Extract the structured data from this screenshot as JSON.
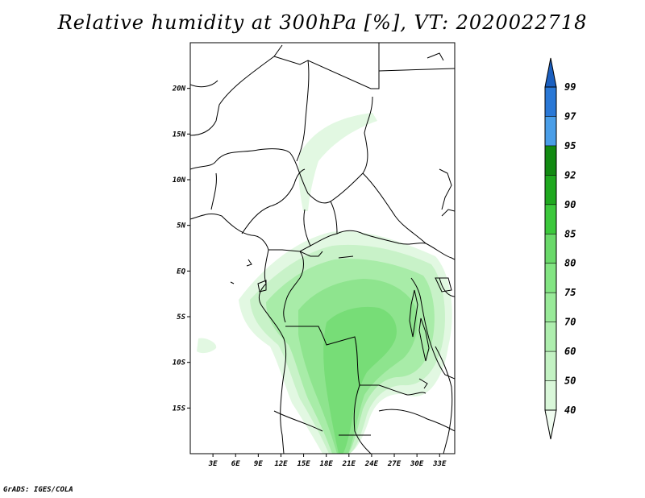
{
  "title": "Relative humidity at 300hPa [%], VT: 2020022718",
  "credit": "GrADS: IGES/COLA",
  "map": {
    "lon_range": [
      0,
      35
    ],
    "lat_range": [
      -20,
      25
    ],
    "lat_ticks": [
      {
        "value": 20,
        "label": "20N"
      },
      {
        "value": 15,
        "label": "15N"
      },
      {
        "value": 10,
        "label": "10N"
      },
      {
        "value": 5,
        "label": "5N"
      },
      {
        "value": 0,
        "label": "EQ"
      },
      {
        "value": -5,
        "label": "5S"
      },
      {
        "value": -10,
        "label": "10S"
      },
      {
        "value": -15,
        "label": "15S"
      }
    ],
    "lon_ticks": [
      {
        "value": 3,
        "label": "3E"
      },
      {
        "value": 6,
        "label": "6E"
      },
      {
        "value": 9,
        "label": "9E"
      },
      {
        "value": 12,
        "label": "12E"
      },
      {
        "value": 15,
        "label": "15E"
      },
      {
        "value": 18,
        "label": "18E"
      },
      {
        "value": 21,
        "label": "21E"
      },
      {
        "value": 24,
        "label": "24E"
      },
      {
        "value": 27,
        "label": "27E"
      },
      {
        "value": 30,
        "label": "30E"
      },
      {
        "value": 33,
        "label": "33E"
      }
    ]
  },
  "colorbar": {
    "levels": [
      "40",
      "50",
      "60",
      "70",
      "75",
      "80",
      "85",
      "90",
      "92",
      "95",
      "97",
      "99"
    ],
    "colors": [
      "#f0fcf0",
      "#d9f7d9",
      "#c3f2c3",
      "#aeeeae",
      "#99ea99",
      "#83e583",
      "#6ad96a",
      "#3cc83c",
      "#1fa81f",
      "#128a12",
      "#4a9ee8",
      "#2a78d6",
      "#1b5fbf"
    ]
  }
}
